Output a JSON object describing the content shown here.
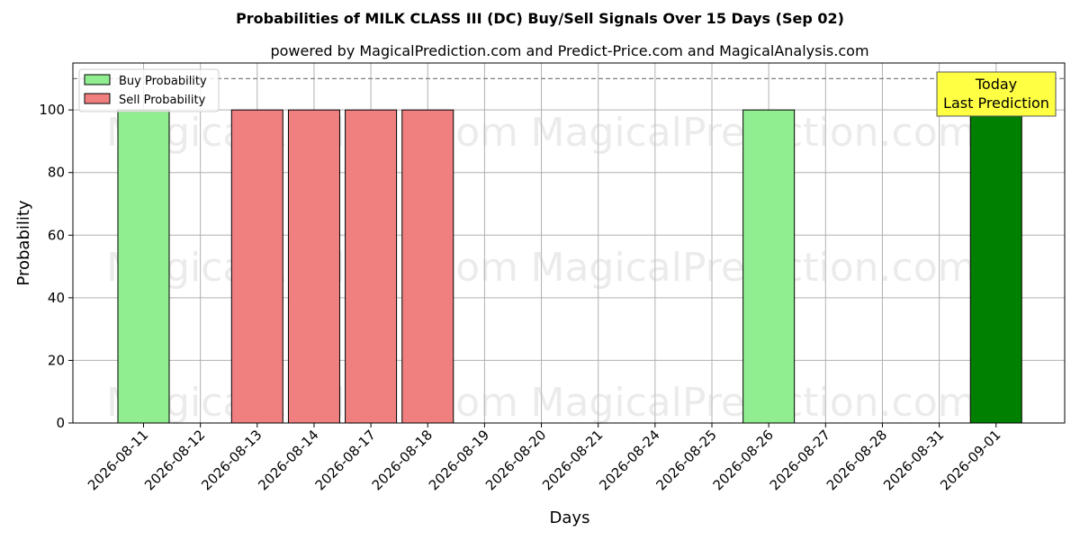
{
  "chart_data": {
    "type": "bar",
    "title": "Probabilities of MILK CLASS III (DC) Buy/Sell Signals Over 15 Days (Sep 02)",
    "subtitle": "powered by MagicalPrediction.com and Predict-Price.com and MagicalAnalysis.com",
    "xlabel": "Days",
    "ylabel": "Probability",
    "ylim": [
      0,
      115
    ],
    "yticks": [
      0,
      20,
      40,
      60,
      80,
      100
    ],
    "reference_line": 110,
    "grid": true,
    "legend_position": "top-left",
    "categories": [
      "2026-08-11",
      "2026-08-12",
      "2026-08-13",
      "2026-08-14",
      "2026-08-17",
      "2026-08-18",
      "2026-08-19",
      "2026-08-20",
      "2026-08-21",
      "2026-08-24",
      "2026-08-25",
      "2026-08-26",
      "2026-08-27",
      "2026-08-28",
      "2026-08-31",
      "2026-09-01"
    ],
    "series": [
      {
        "name": "Buy Probability",
        "color": "#90ee90",
        "values": [
          100,
          0,
          0,
          0,
          0,
          0,
          0,
          0,
          0,
          0,
          0,
          100,
          0,
          0,
          0,
          0
        ]
      },
      {
        "name": "Sell Probability",
        "color": "#f08080",
        "values": [
          0,
          0,
          100,
          100,
          100,
          100,
          0,
          0,
          0,
          0,
          0,
          0,
          0,
          0,
          0,
          0
        ]
      }
    ],
    "highlight": {
      "category": "2026-09-01",
      "value": 100,
      "color": "#008000",
      "annotation_lines": [
        "Today",
        "Last Prediction"
      ],
      "annotation_color": "#ffff44"
    },
    "watermarks": [
      "MagicalAnalysis.com",
      "MagicalPrediction.com"
    ]
  }
}
